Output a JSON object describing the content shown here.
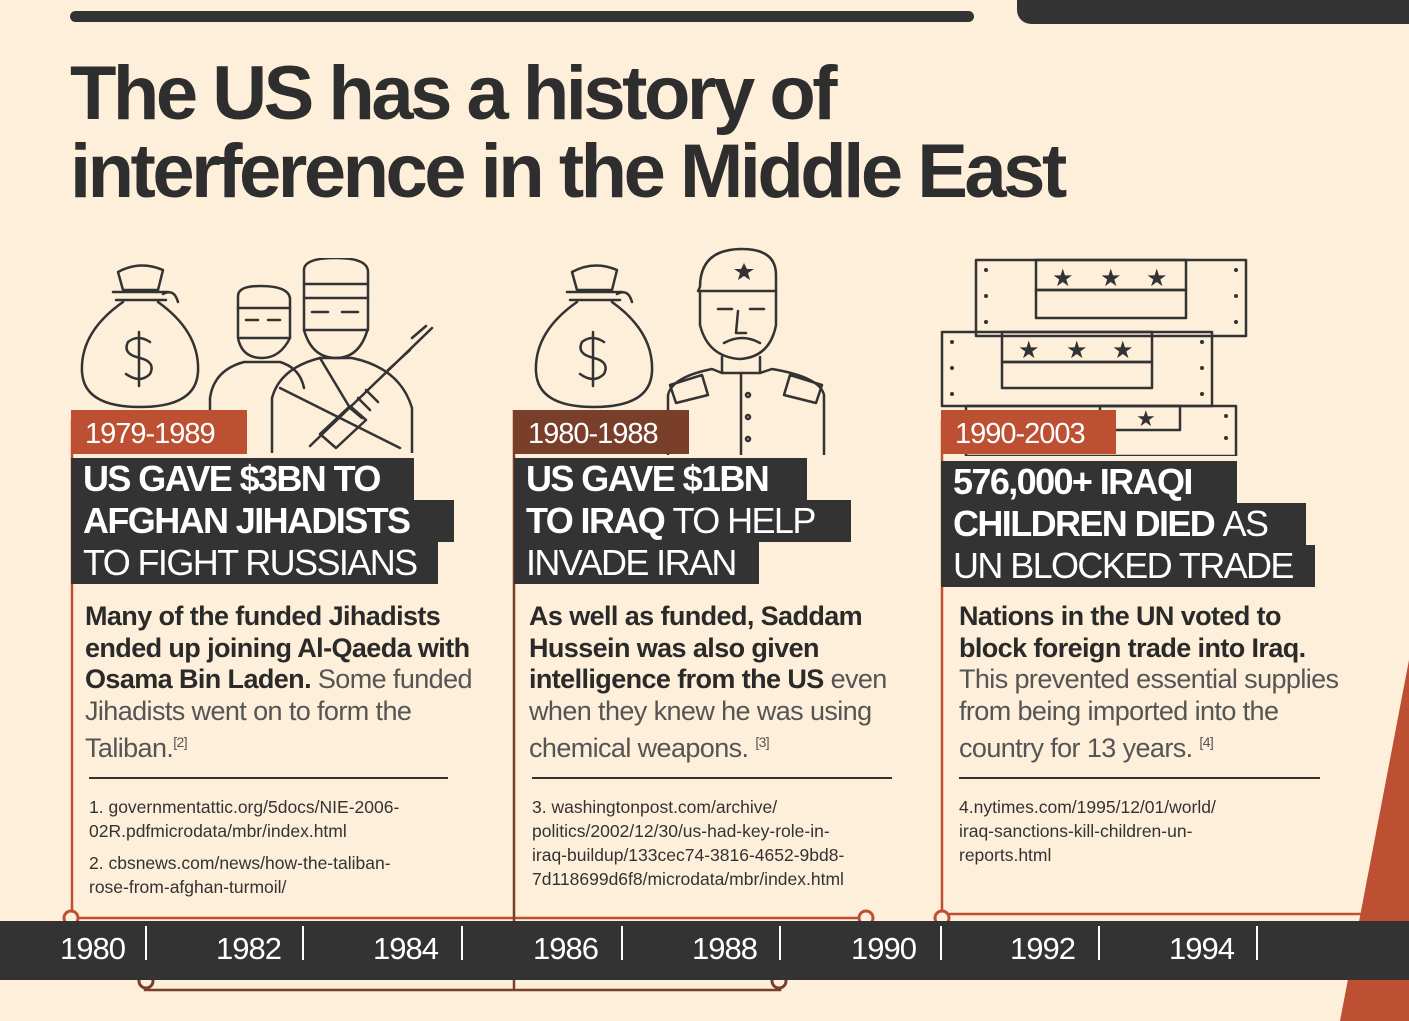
{
  "title_lines": [
    "The US has a history of",
    "interference in the Middle East"
  ],
  "colors": {
    "background": "#fdefd9",
    "dark": "#333333",
    "orange": "#bd5032",
    "brown": "#7a3f2a"
  },
  "icons": [
    "money-bag-icon",
    "jihadist-fighters-icon",
    "money-bag-icon",
    "soldier-icon",
    "shipping-crates-icon"
  ],
  "events": [
    {
      "date": "1979-1989",
      "headline_lines": [
        {
          "bold": "US GAVE $3BN TO",
          "light": ""
        },
        {
          "bold": "AFGHAN JIHADISTS",
          "light": ""
        },
        {
          "bold": "",
          "light": "TO FIGHT RUSSIANS"
        }
      ],
      "body": {
        "bold": "Many of the funded Jihadists ended up joining Al-Qaeda with Osama Bin Laden",
        "sep": ". ",
        "light": "Some funded Jihadists went on to form the Taliban.",
        "note": "[2]"
      },
      "refs": [
        "1. governmentattic.org/5docs/NIE-2006-\n02R.pdfmicrodata/mbr/index.html",
        "2. cbsnews.com/news/how-the-taliban-\nrose-from-afghan-turmoil/"
      ]
    },
    {
      "date": "1980-1988",
      "headline_lines": [
        {
          "bold": "US GAVE $1BN",
          "light": ""
        },
        {
          "bold": "TO IRAQ ",
          "light": "TO HELP"
        },
        {
          "bold": "",
          "light": "INVADE IRAN"
        }
      ],
      "body": {
        "bold": "As well as funded, Saddam Hussein was also given intelligence from the US",
        "sep": " ",
        "light": "even when they knew he was using chemical weapons. ",
        "note": "[3]"
      },
      "refs": [
        "3. washingtonpost.com/archive/\npolitics/2002/12/30/us-had-key-role-in-\niraq-buildup/133cec74-3816-4652-9bd8-\n7d118699d6f8/microdata/mbr/index.html"
      ]
    },
    {
      "date": "1990-2003",
      "headline_lines": [
        {
          "bold": "576,000+ IRAQI",
          "light": ""
        },
        {
          "bold": "CHILDREN DIED ",
          "light": "AS"
        },
        {
          "bold": "",
          "light": "UN BLOCKED TRADE"
        }
      ],
      "body": {
        "bold": "Nations in the UN voted to block foreign trade into Iraq.",
        "sep": " ",
        "light": "This prevented essential supplies from being imported into the country for 13 years. ",
        "note": "[4]"
      },
      "refs": [
        "4.nytimes.com/1995/12/01/world/\niraq-sanctions-kill-children-un-\nreports.html"
      ]
    }
  ],
  "timeline": {
    "years": [
      "1980",
      "1982",
      "1984",
      "1986",
      "1988",
      "1990",
      "1992",
      "1994"
    ]
  }
}
